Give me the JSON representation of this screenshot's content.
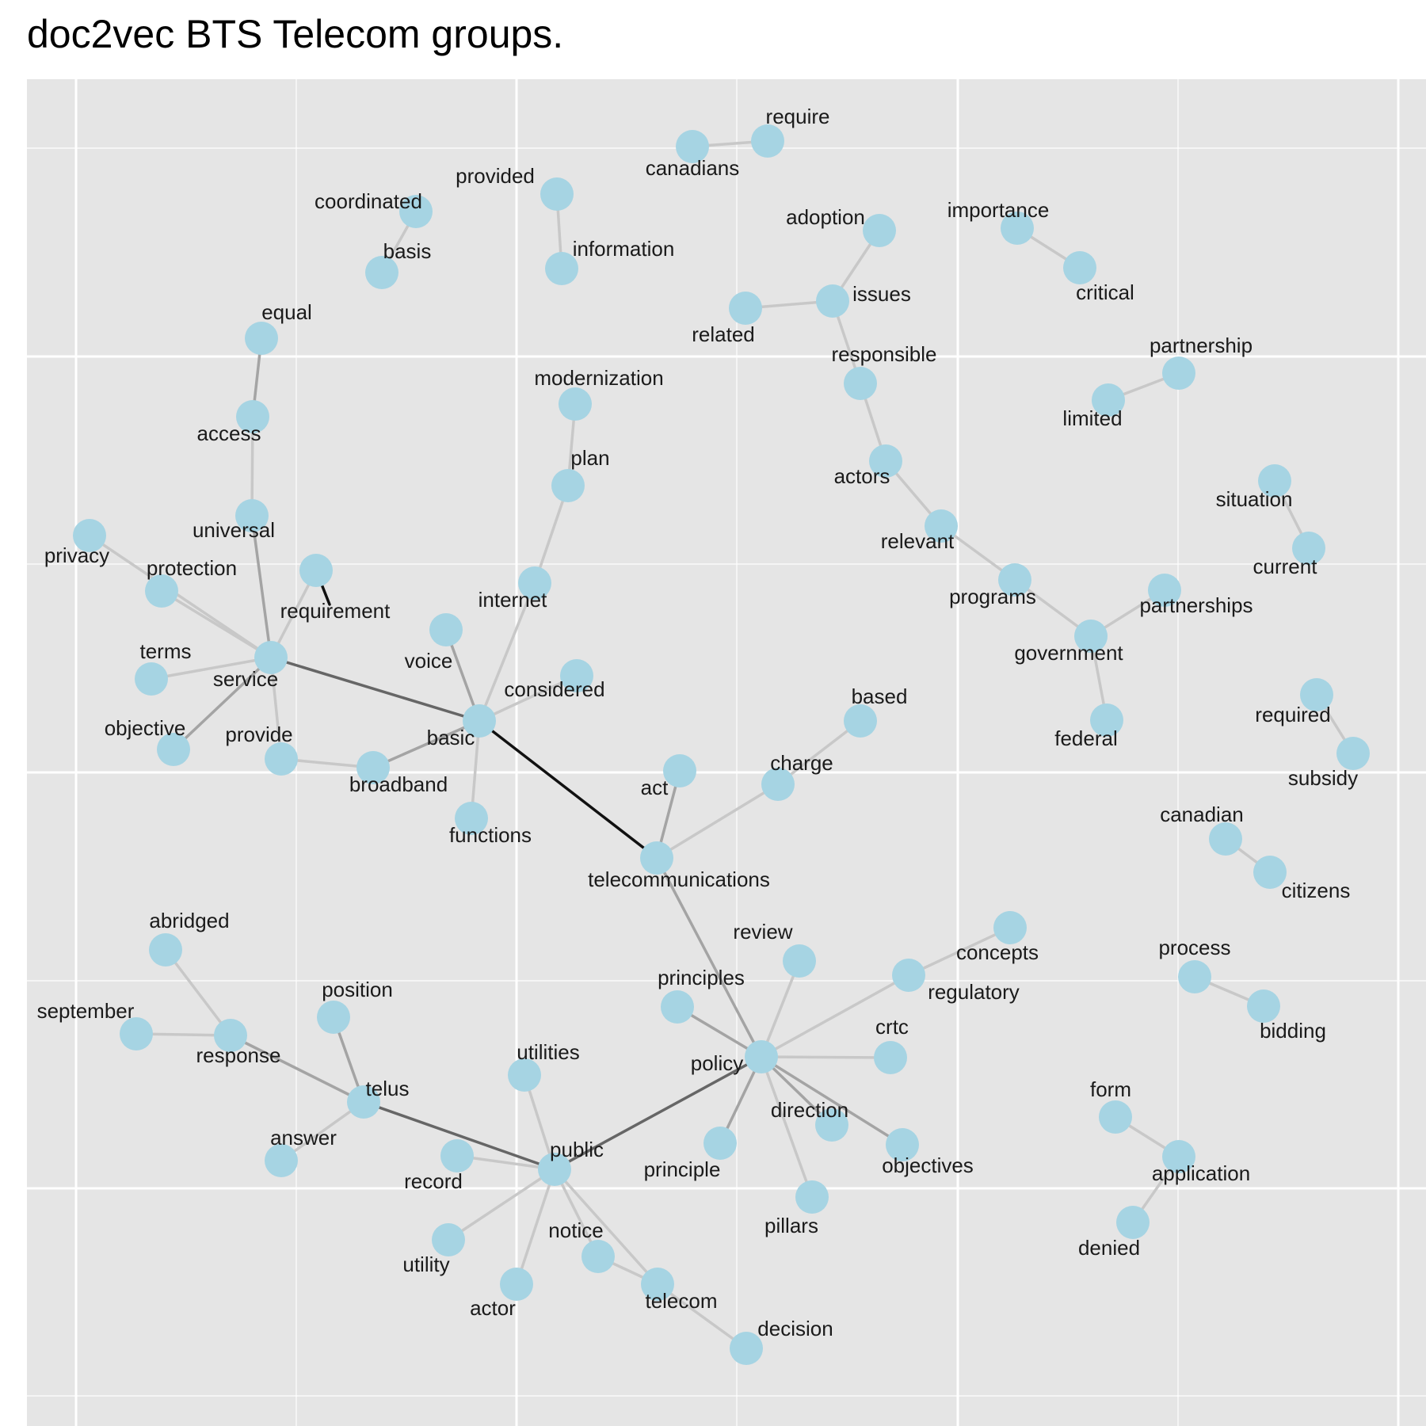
{
  "title": "doc2vec BTS Telecom groups.",
  "colors": {
    "panel": "#e5e5e5",
    "grid": "#ffffff",
    "node": "#a6d4e3",
    "label": "#1a1a1a"
  },
  "nodes": [
    {
      "id": "require",
      "label": "require"
    },
    {
      "id": "canadians",
      "label": "canadians"
    },
    {
      "id": "coordinated",
      "label": "coordinated"
    },
    {
      "id": "basis",
      "label": "basis"
    },
    {
      "id": "provided",
      "label": "provided"
    },
    {
      "id": "information",
      "label": "information"
    },
    {
      "id": "adoption",
      "label": "adoption"
    },
    {
      "id": "issues",
      "label": "issues"
    },
    {
      "id": "related",
      "label": "related"
    },
    {
      "id": "importance",
      "label": "importance"
    },
    {
      "id": "critical",
      "label": "critical"
    },
    {
      "id": "equal",
      "label": "equal"
    },
    {
      "id": "access",
      "label": "access"
    },
    {
      "id": "universal",
      "label": "universal"
    },
    {
      "id": "modernization",
      "label": "modernization"
    },
    {
      "id": "plan",
      "label": "plan"
    },
    {
      "id": "internet",
      "label": "internet"
    },
    {
      "id": "responsible",
      "label": "responsible"
    },
    {
      "id": "actors",
      "label": "actors"
    },
    {
      "id": "relevant",
      "label": "relevant"
    },
    {
      "id": "programs",
      "label": "programs"
    },
    {
      "id": "government",
      "label": "government"
    },
    {
      "id": "federal",
      "label": "federal"
    },
    {
      "id": "partnerships",
      "label": "partnerships"
    },
    {
      "id": "partnership",
      "label": "partnership"
    },
    {
      "id": "limited",
      "label": "limited"
    },
    {
      "id": "situation",
      "label": "situation"
    },
    {
      "id": "current",
      "label": "current"
    },
    {
      "id": "privacy",
      "label": "privacy"
    },
    {
      "id": "protection",
      "label": "protection"
    },
    {
      "id": "requirement",
      "label": "requirement"
    },
    {
      "id": "service",
      "label": "service"
    },
    {
      "id": "terms",
      "label": "terms"
    },
    {
      "id": "objective",
      "label": "objective"
    },
    {
      "id": "provide",
      "label": "provide"
    },
    {
      "id": "broadband",
      "label": "broadband"
    },
    {
      "id": "basic",
      "label": "basic"
    },
    {
      "id": "voice",
      "label": "voice"
    },
    {
      "id": "considered",
      "label": "considered"
    },
    {
      "id": "functions",
      "label": "functions"
    },
    {
      "id": "act",
      "label": "act"
    },
    {
      "id": "charge",
      "label": "charge"
    },
    {
      "id": "based",
      "label": "based"
    },
    {
      "id": "telecommunications",
      "label": "telecommunications"
    },
    {
      "id": "required",
      "label": "required"
    },
    {
      "id": "subsidy",
      "label": "subsidy"
    },
    {
      "id": "canadian",
      "label": "canadian"
    },
    {
      "id": "citizens",
      "label": "citizens"
    },
    {
      "id": "abridged",
      "label": "abridged"
    },
    {
      "id": "september",
      "label": "september"
    },
    {
      "id": "response",
      "label": "response"
    },
    {
      "id": "position",
      "label": "position"
    },
    {
      "id": "telus",
      "label": "telus"
    },
    {
      "id": "answer",
      "label": "answer"
    },
    {
      "id": "review",
      "label": "review"
    },
    {
      "id": "concepts",
      "label": "concepts"
    },
    {
      "id": "regulatory",
      "label": "regulatory"
    },
    {
      "id": "principles",
      "label": "principles"
    },
    {
      "id": "crtc",
      "label": "crtc"
    },
    {
      "id": "policy",
      "label": "policy"
    },
    {
      "id": "direction",
      "label": "direction"
    },
    {
      "id": "objectives",
      "label": "objectives"
    },
    {
      "id": "principle",
      "label": "principle"
    },
    {
      "id": "pillars",
      "label": "pillars"
    },
    {
      "id": "utilities",
      "label": "utilities"
    },
    {
      "id": "record",
      "label": "record"
    },
    {
      "id": "public",
      "label": "public"
    },
    {
      "id": "utility",
      "label": "utility"
    },
    {
      "id": "actor",
      "label": "actor"
    },
    {
      "id": "notice",
      "label": "notice"
    },
    {
      "id": "telecom",
      "label": "telecom"
    },
    {
      "id": "decision",
      "label": "decision"
    },
    {
      "id": "process",
      "label": "process"
    },
    {
      "id": "bidding",
      "label": "bidding"
    },
    {
      "id": "form",
      "label": "form"
    },
    {
      "id": "application",
      "label": "application"
    },
    {
      "id": "denied",
      "label": "denied"
    }
  ],
  "edges": [
    {
      "from": "canadians",
      "to": "require",
      "weight": "light"
    },
    {
      "from": "coordinated",
      "to": "basis",
      "weight": "light"
    },
    {
      "from": "provided",
      "to": "information",
      "weight": "light"
    },
    {
      "from": "adoption",
      "to": "issues",
      "weight": "light"
    },
    {
      "from": "related",
      "to": "issues",
      "weight": "light"
    },
    {
      "from": "issues",
      "to": "responsible",
      "weight": "light"
    },
    {
      "from": "importance",
      "to": "critical",
      "weight": "light"
    },
    {
      "from": "equal",
      "to": "access",
      "weight": "medium"
    },
    {
      "from": "access",
      "to": "universal",
      "weight": "light"
    },
    {
      "from": "universal",
      "to": "service",
      "weight": "medium"
    },
    {
      "from": "modernization",
      "to": "plan",
      "weight": "light"
    },
    {
      "from": "plan",
      "to": "internet",
      "weight": "light"
    },
    {
      "from": "internet",
      "to": "basic",
      "weight": "light"
    },
    {
      "from": "responsible",
      "to": "actors",
      "weight": "light"
    },
    {
      "from": "actors",
      "to": "relevant",
      "weight": "light"
    },
    {
      "from": "relevant",
      "to": "programs",
      "weight": "light"
    },
    {
      "from": "programs",
      "to": "government",
      "weight": "light"
    },
    {
      "from": "government",
      "to": "federal",
      "weight": "light"
    },
    {
      "from": "government",
      "to": "partnerships",
      "weight": "light"
    },
    {
      "from": "limited",
      "to": "partnership",
      "weight": "light"
    },
    {
      "from": "situation",
      "to": "current",
      "weight": "light"
    },
    {
      "from": "privacy",
      "to": "service",
      "weight": "light"
    },
    {
      "from": "protection",
      "to": "service",
      "weight": "light"
    },
    {
      "from": "requirement",
      "to": "service",
      "weight": "light"
    },
    {
      "from": "requirement",
      "to": "requirement-tail",
      "weight": "dark"
    },
    {
      "from": "terms",
      "to": "service",
      "weight": "light"
    },
    {
      "from": "objective",
      "to": "service",
      "weight": "medium"
    },
    {
      "from": "service",
      "to": "provide",
      "weight": "light"
    },
    {
      "from": "provide",
      "to": "broadband",
      "weight": "light"
    },
    {
      "from": "broadband",
      "to": "basic",
      "weight": "medium"
    },
    {
      "from": "service",
      "to": "basic",
      "weight": "medium-dark"
    },
    {
      "from": "voice",
      "to": "basic",
      "weight": "medium"
    },
    {
      "from": "considered",
      "to": "basic",
      "weight": "light"
    },
    {
      "from": "functions",
      "to": "basic",
      "weight": "light"
    },
    {
      "from": "basic",
      "to": "telecommunications",
      "weight": "dark"
    },
    {
      "from": "act",
      "to": "telecommunications",
      "weight": "medium"
    },
    {
      "from": "charge",
      "to": "telecommunications",
      "weight": "light"
    },
    {
      "from": "based",
      "to": "charge",
      "weight": "light"
    },
    {
      "from": "telecommunications",
      "to": "policy",
      "weight": "medium"
    },
    {
      "from": "required",
      "to": "subsidy",
      "weight": "light"
    },
    {
      "from": "canadian",
      "to": "citizens",
      "weight": "light"
    },
    {
      "from": "abridged",
      "to": "response",
      "weight": "light"
    },
    {
      "from": "september",
      "to": "response",
      "weight": "light"
    },
    {
      "from": "response",
      "to": "telus",
      "weight": "medium"
    },
    {
      "from": "position",
      "to": "telus",
      "weight": "medium"
    },
    {
      "from": "answer",
      "to": "telus",
      "weight": "light"
    },
    {
      "from": "telus",
      "to": "public",
      "weight": "medium-dark"
    },
    {
      "from": "review",
      "to": "policy",
      "weight": "light"
    },
    {
      "from": "concepts",
      "to": "regulatory",
      "weight": "light"
    },
    {
      "from": "regulatory",
      "to": "policy",
      "weight": "light"
    },
    {
      "from": "principles",
      "to": "policy",
      "weight": "medium"
    },
    {
      "from": "crtc",
      "to": "policy",
      "weight": "light"
    },
    {
      "from": "policy",
      "to": "direction",
      "weight": "medium"
    },
    {
      "from": "policy",
      "to": "objectives",
      "weight": "medium"
    },
    {
      "from": "policy",
      "to": "principle",
      "weight": "medium"
    },
    {
      "from": "policy",
      "to": "pillars",
      "weight": "light"
    },
    {
      "from": "policy",
      "to": "public",
      "weight": "medium-dark"
    },
    {
      "from": "utilities",
      "to": "public",
      "weight": "light"
    },
    {
      "from": "record",
      "to": "public",
      "weight": "light"
    },
    {
      "from": "public",
      "to": "utility",
      "weight": "light"
    },
    {
      "from": "public",
      "to": "actor",
      "weight": "light"
    },
    {
      "from": "public",
      "to": "notice",
      "weight": "light"
    },
    {
      "from": "public",
      "to": "telecom",
      "weight": "light"
    },
    {
      "from": "notice",
      "to": "telecom",
      "weight": "light"
    },
    {
      "from": "telecom",
      "to": "decision",
      "weight": "light"
    },
    {
      "from": "process",
      "to": "bidding",
      "weight": "light"
    },
    {
      "from": "form",
      "to": "application",
      "weight": "light"
    },
    {
      "from": "application",
      "to": "denied",
      "weight": "light"
    }
  ]
}
